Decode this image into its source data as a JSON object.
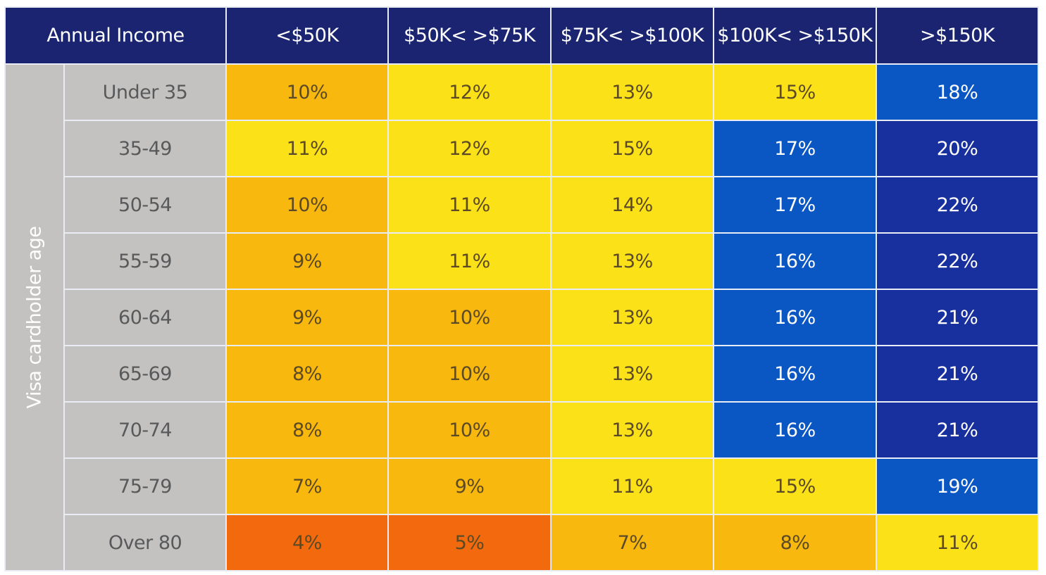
{
  "chart_data": {
    "type": "heatmap",
    "corner_label": "Annual Income",
    "row_axis_label": "Visa cardholder age",
    "columns": [
      "<$50K",
      "$50K< >$75K",
      "$75K< >$100K",
      "$100K< >$150K",
      ">$150K"
    ],
    "rows": [
      "Under 35",
      "35-49",
      "50-54",
      "55-59",
      "60-64",
      "65-69",
      "70-74",
      "75-79",
      "Over 80"
    ],
    "values": [
      [
        10,
        12,
        13,
        15,
        18
      ],
      [
        11,
        12,
        15,
        17,
        20
      ],
      [
        10,
        11,
        14,
        17,
        22
      ],
      [
        9,
        11,
        13,
        16,
        22
      ],
      [
        9,
        10,
        13,
        16,
        21
      ],
      [
        8,
        10,
        13,
        16,
        21
      ],
      [
        8,
        10,
        13,
        16,
        21
      ],
      [
        7,
        9,
        11,
        15,
        19
      ],
      [
        4,
        5,
        7,
        8,
        11
      ]
    ],
    "value_suffix": "%",
    "color_scale": [
      {
        "max": 6,
        "color": "#f26a0d",
        "text": "#5c4a26"
      },
      {
        "max": 10,
        "color": "#f8b80e",
        "text": "#5c4a26"
      },
      {
        "max": 15,
        "color": "#fbe117",
        "text": "#5c4a26"
      },
      {
        "max": 19,
        "color": "#0a57c4",
        "text": "#ffffff"
      },
      {
        "max": 100,
        "color": "#18309e",
        "text": "#ffffff"
      }
    ]
  }
}
